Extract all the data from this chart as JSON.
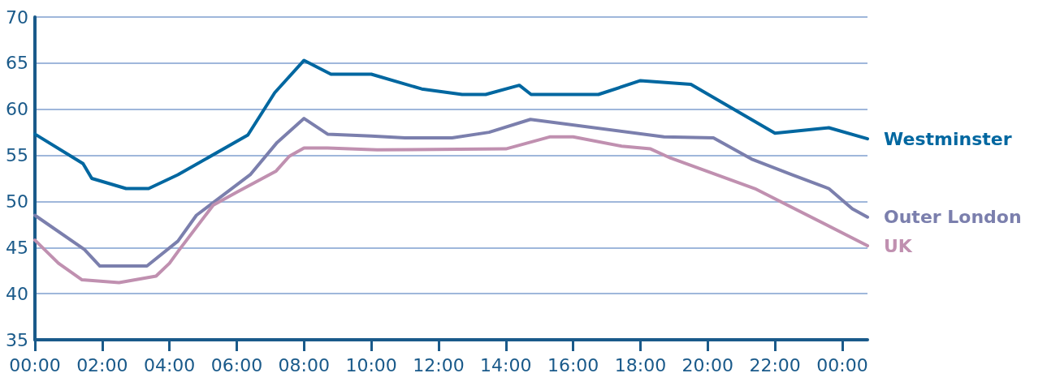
{
  "chart_data": {
    "type": "line",
    "xlim": [
      0,
      24.75
    ],
    "ylim": [
      35,
      70
    ],
    "yticks": [
      35,
      40,
      45,
      50,
      55,
      60,
      65,
      70
    ],
    "xticks": [
      {
        "value": 0,
        "label": "00:00"
      },
      {
        "value": 2,
        "label": "02:00"
      },
      {
        "value": 4,
        "label": "04:00"
      },
      {
        "value": 6,
        "label": "06:00"
      },
      {
        "value": 8,
        "label": "08:00"
      },
      {
        "value": 10,
        "label": "10:00"
      },
      {
        "value": 12,
        "label": "12:00"
      },
      {
        "value": 14,
        "label": "14:00"
      },
      {
        "value": 16,
        "label": "16:00"
      },
      {
        "value": 18,
        "label": "18:00"
      },
      {
        "value": 20,
        "label": "20:00"
      },
      {
        "value": 22,
        "label": "22:00"
      },
      {
        "value": 24,
        "label": "00:00"
      }
    ],
    "grid": "y",
    "legend": false,
    "marker": "none",
    "line_style": "solid",
    "series": [
      {
        "name": "Westminster",
        "color": "#0067a0",
        "x": [
          0,
          1.43,
          1.69,
          2.71,
          3.38,
          4.25,
          6.33,
          7.13,
          8.0,
          8.8,
          10.0,
          11.5,
          12.7,
          13.4,
          14.4,
          14.75,
          16.75,
          18.0,
          19.5,
          22.0,
          23.6,
          24.75
        ],
        "values": [
          57.3,
          54.1,
          52.5,
          51.4,
          51.4,
          52.9,
          57.2,
          61.8,
          65.3,
          63.8,
          63.8,
          62.2,
          61.6,
          61.6,
          62.6,
          61.6,
          61.6,
          63.1,
          62.7,
          57.4,
          58.0,
          56.8
        ]
      },
      {
        "name": "Outer London",
        "color": "#7b7fad",
        "x": [
          0,
          1.47,
          1.93,
          3.33,
          4.25,
          4.8,
          6.4,
          7.2,
          8.0,
          8.7,
          10.0,
          11.0,
          12.4,
          13.5,
          14.73,
          18.7,
          20.17,
          21.3,
          22.5,
          23.6,
          24.3,
          24.75
        ],
        "values": [
          48.5,
          44.8,
          43.0,
          43.0,
          45.7,
          48.5,
          52.9,
          56.4,
          59.0,
          57.3,
          57.1,
          56.9,
          56.9,
          57.5,
          58.9,
          57.0,
          56.9,
          54.6,
          52.9,
          51.4,
          49.2,
          48.3
        ]
      },
      {
        "name": "UK",
        "color": "#c090b0",
        "x": [
          0,
          0.7,
          1.4,
          2.5,
          3.6,
          4.0,
          4.28,
          5.3,
          6.0,
          7.17,
          7.56,
          8.0,
          8.7,
          10.17,
          14.0,
          15.3,
          16.0,
          17.44,
          18.3,
          18.9,
          21.4,
          24.75
        ],
        "values": [
          45.8,
          43.3,
          41.5,
          41.2,
          41.9,
          43.3,
          44.7,
          49.6,
          51.0,
          53.3,
          54.9,
          55.8,
          55.8,
          55.6,
          55.7,
          57.0,
          57.0,
          56.0,
          55.7,
          54.7,
          51.4,
          45.2
        ]
      }
    ]
  }
}
